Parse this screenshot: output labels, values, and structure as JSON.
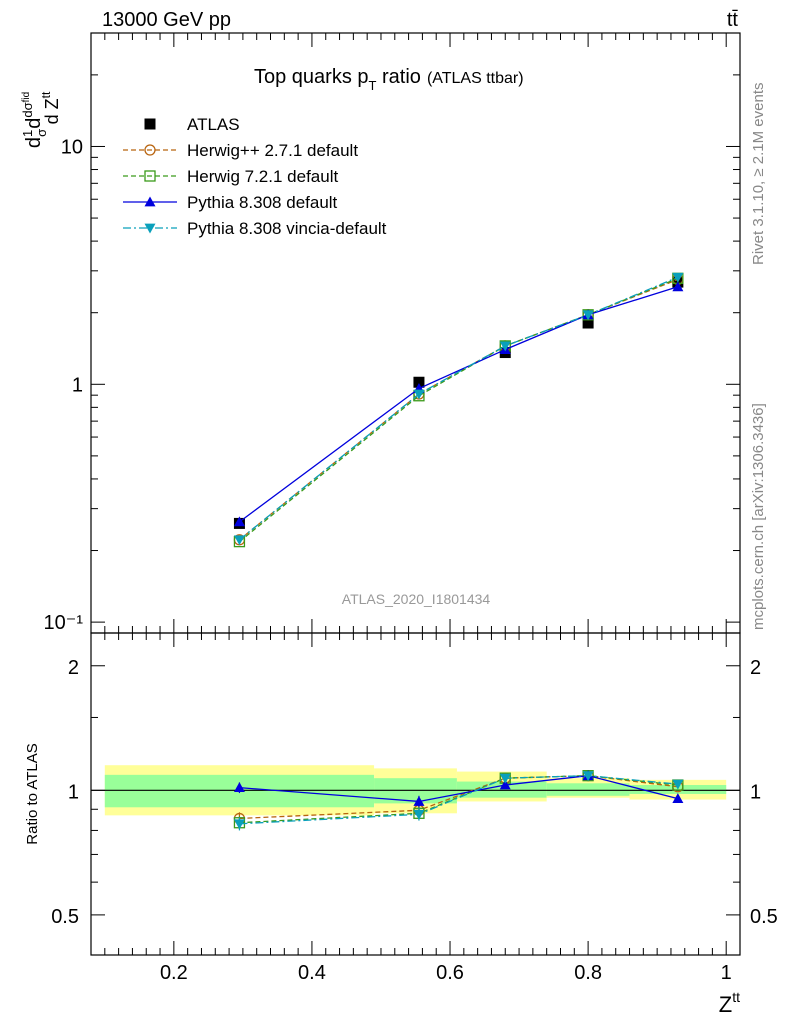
{
  "header": {
    "energy": "13000 GeV pp",
    "process": "tt̄",
    "title_main": "Top quarks p",
    "title_sub": "T",
    "title_post": " ratio",
    "title_tag": "(ATLAS ttbar)",
    "analysis_id": "ATLAS_2020_I1801434",
    "side_rivet": "Rivet 3.1.10, ≥ 2.1M events",
    "side_mcplots": "mcplots.cern.ch [arXiv:1306.3436]"
  },
  "chart_data": [
    {
      "type": "line",
      "panel": "main",
      "ylabel": "1/σ dσ^fid / d Z^tt",
      "yscale": "log",
      "ylim": [
        0.09,
        30
      ],
      "xlim": [
        0.08,
        1.02
      ],
      "y_tick_labels": [
        "10⁻¹",
        "1",
        "10"
      ],
      "x": [
        0.295,
        0.555,
        0.68,
        0.8,
        0.93
      ],
      "series": [
        {
          "name": "ATLAS",
          "color": "#000000",
          "marker": "square-filled",
          "dash": "none",
          "values": [
            0.26,
            1.02,
            1.36,
            1.81,
            2.69
          ]
        },
        {
          "name": "Herwig++ 2.7.1 default",
          "color": "#b8640f",
          "marker": "circle-open",
          "dash": "5,3",
          "values": [
            0.222,
            0.91,
            1.45,
            1.96,
            2.76
          ]
        },
        {
          "name": "Herwig 7.2.1 default",
          "color": "#3a9a1a",
          "marker": "square-open",
          "dash": "5,3",
          "values": [
            0.218,
            0.895,
            1.45,
            1.96,
            2.79
          ]
        },
        {
          "name": "Pythia 8.308 default",
          "color": "#0000dd",
          "marker": "triangle-up",
          "dash": "none",
          "values": [
            0.264,
            0.96,
            1.4,
            1.96,
            2.57
          ]
        },
        {
          "name": "Pythia 8.308 vincia-default",
          "color": "#0aa0bb",
          "marker": "triangle-down",
          "dash": "8,3,2,3",
          "values": [
            0.222,
            0.91,
            1.45,
            1.96,
            2.82
          ]
        }
      ]
    },
    {
      "type": "line",
      "panel": "ratio",
      "ylabel": "Ratio to ATLAS",
      "xlabel": "Z^tt",
      "ylim": [
        0.4,
        2.4
      ],
      "xlim": [
        0.08,
        1.02
      ],
      "x_tick_labels": [
        "0.2",
        "0.4",
        "0.6",
        "0.8",
        "1"
      ],
      "y_tick_labels": [
        "0.5",
        "1",
        "2"
      ],
      "x": [
        0.295,
        0.555,
        0.68,
        0.8,
        0.93
      ],
      "band_bins": [
        0.1,
        0.49,
        0.61,
        0.74,
        0.86,
        1.0
      ],
      "band_inner": [
        [
          0.91,
          1.09
        ],
        [
          0.93,
          1.07
        ],
        [
          0.96,
          1.05
        ],
        [
          0.97,
          1.04
        ],
        [
          0.98,
          1.03
        ]
      ],
      "band_outer": [
        [
          0.87,
          1.15
        ],
        [
          0.88,
          1.13
        ],
        [
          0.94,
          1.11
        ],
        [
          0.96,
          1.07
        ],
        [
          0.95,
          1.06
        ]
      ],
      "series": [
        {
          "name": "Herwig++ 2.7.1 default",
          "color": "#b8640f",
          "marker": "circle-open",
          "dash": "5,3",
          "values": [
            0.855,
            0.895,
            1.07,
            1.085,
            1.02
          ],
          "err": [
            0.03,
            0.03,
            0.02,
            0.015,
            0.01
          ]
        },
        {
          "name": "Herwig 7.2.1 default",
          "color": "#3a9a1a",
          "marker": "square-open",
          "dash": "5,3",
          "values": [
            0.835,
            0.88,
            1.07,
            1.085,
            1.03
          ],
          "err": [
            0.03,
            0.03,
            0.02,
            0.015,
            0.01
          ]
        },
        {
          "name": "Pythia 8.308 default",
          "color": "#0000dd",
          "marker": "triangle-up",
          "dash": "none",
          "values": [
            1.015,
            0.94,
            1.03,
            1.085,
            0.955
          ],
          "err": [
            0.03,
            0.03,
            0.02,
            0.015,
            0.01
          ]
        },
        {
          "name": "Pythia 8.308 vincia-default",
          "color": "#0aa0bb",
          "marker": "triangle-down",
          "dash": "8,3,2,3",
          "values": [
            0.83,
            0.875,
            1.07,
            1.085,
            1.035
          ],
          "err": [
            0.03,
            0.03,
            0.02,
            0.015,
            0.01
          ]
        }
      ]
    }
  ]
}
